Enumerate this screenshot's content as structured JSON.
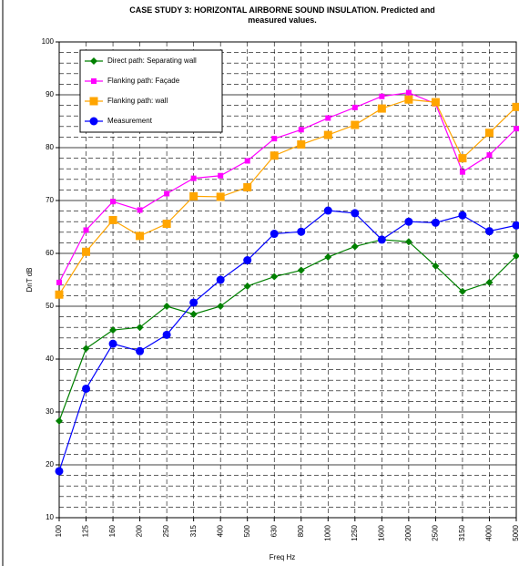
{
  "chart_data": {
    "type": "line",
    "title": "CASE STUDY 3: HORIZONTAL AIRBORNE SOUND INSULATION. Predicted and measured values.",
    "x_label": "Freq  Hz",
    "y_label": "DnT dB",
    "categories": [
      "100",
      "125",
      "160",
      "200",
      "250",
      "315",
      "400",
      "500",
      "630",
      "800",
      "1000",
      "1250",
      "1600",
      "2000",
      "2500",
      "3150",
      "4000",
      "5000"
    ],
    "ylim": [
      10,
      100
    ],
    "yticks": [
      10,
      20,
      30,
      40,
      50,
      60,
      70,
      80,
      90,
      100
    ],
    "grid": true,
    "legend": "upper-left",
    "series": [
      {
        "name": "Direct path: Separating wall",
        "color": "#008000",
        "marker": "diamond",
        "values": [
          28.3,
          42,
          45.5,
          46,
          50,
          48.5,
          50,
          53.8,
          55.6,
          56.8,
          59.3,
          61.3,
          62.6,
          62.2,
          57.6,
          52.8,
          54.5,
          59.5
        ]
      },
      {
        "name": "Flanking path: Façade",
        "color": "#ff00ff",
        "marker": "square",
        "values": [
          54.5,
          64.4,
          69.8,
          68.2,
          71.3,
          74.2,
          74.7,
          77.5,
          81.7,
          83.4,
          85.6,
          87.6,
          89.7,
          90.4,
          88.3,
          75.4,
          78.6,
          83.6
        ]
      },
      {
        "name": "Flanking path: wall",
        "color": "#ffa500",
        "marker": "bigsquare",
        "values": [
          52.2,
          60.3,
          66.3,
          63.3,
          65.6,
          70.8,
          70.7,
          72.5,
          78.5,
          80.6,
          82.4,
          84.3,
          87.4,
          89.1,
          88.6,
          78,
          82.8,
          87.7
        ]
      },
      {
        "name": "Measurement",
        "color": "#0000ff",
        "marker": "circle",
        "values": [
          18.8,
          34.4,
          42.9,
          41.5,
          44.6,
          50.7,
          55,
          58.7,
          63.7,
          64.1,
          68.1,
          67.6,
          62.6,
          66,
          65.8,
          67.2,
          64.2,
          65.3
        ]
      }
    ]
  }
}
